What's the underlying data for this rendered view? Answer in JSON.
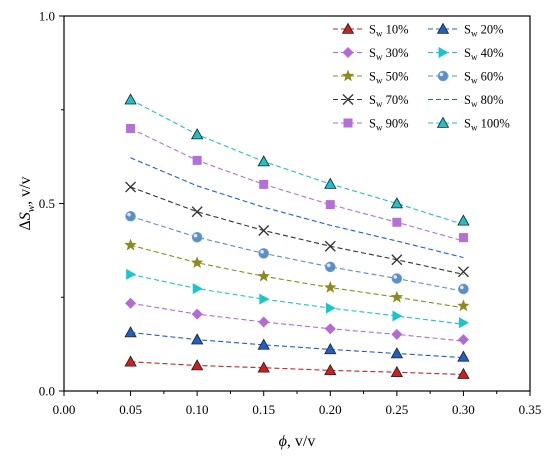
{
  "chart_data": {
    "type": "line",
    "title": "",
    "xlabel": "ϕ, v/v",
    "ylabel": "ΔS_w, v/v",
    "xlim": [
      0.0,
      0.35
    ],
    "ylim": [
      0.0,
      1.0
    ],
    "x_ticks": [
      0.0,
      0.05,
      0.1,
      0.15,
      0.2,
      0.25,
      0.3,
      0.35
    ],
    "x_tick_labels": [
      "0.00",
      "0.05",
      "0.10",
      "0.15",
      "0.20",
      "0.25",
      "0.30",
      "0.35"
    ],
    "y_ticks": [
      0.0,
      0.5,
      1.0
    ],
    "y_tick_labels": [
      "0.0",
      "0.5",
      "1.0"
    ],
    "grid": false,
    "legend_position": "top-right",
    "x": [
      0.05,
      0.1,
      0.15,
      0.2,
      0.25,
      0.3
    ],
    "series": [
      {
        "name": "10%",
        "marker": "triangle",
        "color": "#cc1f1f",
        "values": [
          0.078,
          0.068,
          0.062,
          0.055,
          0.05,
          0.045
        ],
        "fit_end": 0.044
      },
      {
        "name": "20%",
        "marker": "triangle",
        "color": "#1f5fc9",
        "values": [
          0.156,
          0.137,
          0.123,
          0.111,
          0.1,
          0.091
        ],
        "fit_end": 0.089
      },
      {
        "name": "30%",
        "marker": "diamond",
        "color": "#b26bd6",
        "values": [
          0.234,
          0.205,
          0.184,
          0.166,
          0.151,
          0.137
        ],
        "fit_end": 0.133
      },
      {
        "name": "40%",
        "marker": "tri-right",
        "color": "#19c4cf",
        "values": [
          0.311,
          0.273,
          0.245,
          0.221,
          0.2,
          0.182
        ],
        "fit_end": 0.178
      },
      {
        "name": "50%",
        "marker": "star",
        "color": "#8c8c1e",
        "values": [
          0.389,
          0.342,
          0.306,
          0.276,
          0.25,
          0.227
        ],
        "fit_end": 0.222
      },
      {
        "name": "60%",
        "marker": "sphere",
        "color": "#5b8fc7",
        "values": [
          0.466,
          0.41,
          0.367,
          0.331,
          0.3,
          0.272
        ],
        "fit_end": 0.266
      },
      {
        "name": "70%",
        "marker": "x",
        "color": "#333333",
        "values": [
          0.544,
          0.478,
          0.428,
          0.386,
          0.35,
          0.318
        ],
        "fit_end": 0.311
      },
      {
        "name": "80%",
        "marker": "none",
        "color": "#1f5fc9",
        "values": [
          0.622,
          0.547,
          0.49,
          0.442,
          0.4,
          0.363
        ],
        "fit_end": 0.356
      },
      {
        "name": "90%",
        "marker": "square",
        "color": "#b46fd9",
        "values": [
          0.7,
          0.615,
          0.551,
          0.497,
          0.45,
          0.409
        ],
        "fit_end": 0.4
      },
      {
        "name": "100%",
        "marker": "triangle",
        "color": "#1dc2c9",
        "values": [
          0.777,
          0.684,
          0.612,
          0.552,
          0.5,
          0.454
        ],
        "fit_end": 0.444
      }
    ],
    "legend_prefix_main": "S",
    "legend_prefix_sub": "w"
  }
}
